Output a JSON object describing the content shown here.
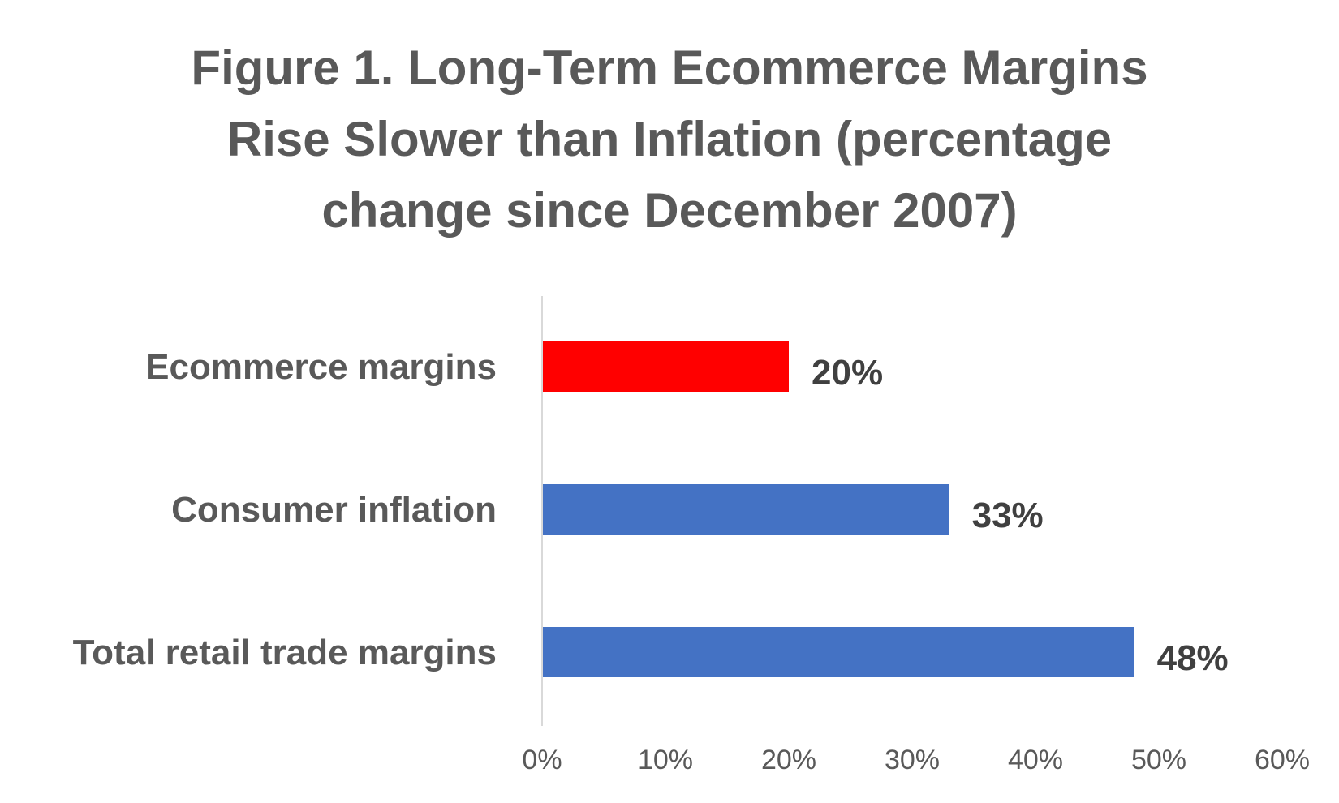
{
  "chart_data": {
    "type": "bar",
    "orientation": "horizontal",
    "title_lines": [
      "Figure 1. Long-Term Ecommerce Margins",
      "Rise Slower than Inflation (percentage",
      "change since December 2007)"
    ],
    "categories": [
      "Ecommerce margins",
      "Consumer inflation",
      "Total retail trade margins"
    ],
    "values": [
      20,
      33,
      48
    ],
    "data_labels": [
      "20%",
      "33%",
      "48%"
    ],
    "colors": [
      "#ff0000",
      "#4472c4",
      "#4472c4"
    ],
    "xlim": [
      0,
      60
    ],
    "ticks": [
      0,
      10,
      20,
      30,
      40,
      50,
      60
    ],
    "tick_labels": [
      "0%",
      "10%",
      "20%",
      "30%",
      "40%",
      "50%",
      "60%"
    ],
    "xlabel": "",
    "ylabel": "",
    "grid": false,
    "legend": "none",
    "axis_color": "#d9d9d9"
  }
}
